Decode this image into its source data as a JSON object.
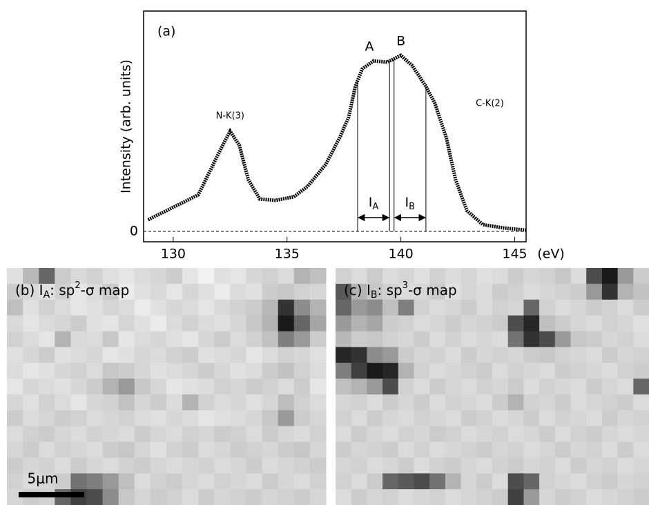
{
  "chart_data": [
    {
      "type": "scatter",
      "panel_label": "(a)",
      "y_label": "Intensity (arb. units)",
      "x_label": "(eV)",
      "x": [
        128.9,
        129.7,
        130.5,
        131.1,
        131.5,
        132.1,
        132.5,
        132.9,
        133.3,
        133.8,
        134.5,
        135.3,
        135.9,
        136.7,
        137.3,
        137.7,
        138.0,
        138.3,
        138.8,
        139.4,
        140.0,
        140.5,
        141.1,
        141.5,
        142.0,
        142.4,
        142.9,
        143.6,
        144.5,
        145.5
      ],
      "values": [
        5.3,
        9.4,
        13.5,
        16.6,
        25,
        37.6,
        45.5,
        39.2,
        23.5,
        14.7,
        14.1,
        15.7,
        20.4,
        30.4,
        42.3,
        51.7,
        65.8,
        73.7,
        77.4,
        76.8,
        79.9,
        75.2,
        65.8,
        58,
        42.3,
        23.5,
        9.4,
        3.1,
        1.6,
        0.6
      ],
      "color": "#000000",
      "xlim": [
        128.7,
        145.5
      ],
      "ylim": [
        -4.7,
        100
      ],
      "xticks": [
        130,
        135,
        140,
        145
      ],
      "yticks": [
        0
      ],
      "annotations": [
        {
          "text": "N-K(3)",
          "x": 132.5
        },
        {
          "text": "A",
          "x": 138.8
        },
        {
          "text": "B",
          "x": 140.0
        },
        {
          "text": "C-K(2)",
          "x": 143.3
        }
      ],
      "windows": [
        {
          "label": "I",
          "sub": "A",
          "range": [
            138.1,
            139.5
          ]
        },
        {
          "label": "I",
          "sub": "B",
          "range": [
            139.7,
            141.1
          ]
        }
      ]
    },
    {
      "type": "heatmap",
      "title": [
        "(b) I",
        "A",
        ": sp",
        "2",
        "-σ map"
      ],
      "scale_bar_label": "5μm",
      "values": [
        [
          88,
          72,
          40,
          80,
          85,
          82,
          88,
          90,
          86,
          84,
          80,
          90,
          95,
          88,
          90,
          84,
          82,
          86,
          70,
          75
        ],
        [
          80,
          85,
          88,
          82,
          90,
          86,
          80,
          92,
          88,
          85,
          90,
          84,
          88,
          92,
          86,
          88,
          80,
          78,
          82,
          84
        ],
        [
          75,
          88,
          82,
          86,
          90,
          88,
          84,
          86,
          92,
          88,
          84,
          86,
          90,
          85,
          82,
          80,
          72,
          20,
          55,
          70
        ],
        [
          85,
          90,
          86,
          84,
          80,
          88,
          90,
          84,
          88,
          92,
          86,
          82,
          86,
          88,
          84,
          78,
          70,
          10,
          40,
          65
        ],
        [
          82,
          86,
          90,
          70,
          85,
          86,
          78,
          90,
          86,
          84,
          88,
          90,
          84,
          80,
          86,
          82,
          76,
          50,
          60,
          80
        ],
        [
          88,
          84,
          80,
          88,
          86,
          84,
          90,
          88,
          84,
          86,
          82,
          80,
          88,
          86,
          84,
          90,
          86,
          82,
          84,
          88
        ],
        [
          86,
          90,
          88,
          84,
          82,
          86,
          78,
          80,
          84,
          88,
          86,
          84,
          80,
          84,
          88,
          86,
          80,
          76,
          82,
          86
        ],
        [
          90,
          84,
          86,
          88,
          84,
          80,
          70,
          60,
          78,
          84,
          90,
          88,
          86,
          82,
          84,
          80,
          82,
          86,
          80,
          90
        ],
        [
          84,
          88,
          82,
          86,
          90,
          84,
          82,
          76,
          84,
          80,
          86,
          70,
          82,
          86,
          84,
          88,
          84,
          74,
          82,
          86
        ],
        [
          80,
          86,
          84,
          80,
          82,
          86,
          84,
          82,
          86,
          88,
          84,
          86,
          90,
          88,
          86,
          84,
          78,
          60,
          80,
          84
        ],
        [
          86,
          82,
          80,
          84,
          86,
          82,
          84,
          86,
          80,
          84,
          86,
          82,
          84,
          80,
          82,
          86,
          80,
          84,
          86,
          82
        ],
        [
          84,
          80,
          86,
          82,
          84,
          86,
          80,
          78,
          84,
          88,
          82,
          80,
          86,
          84,
          80,
          82,
          84,
          80,
          78,
          84
        ],
        [
          80,
          84,
          82,
          86,
          80,
          84,
          86,
          82,
          80,
          84,
          86,
          84,
          82,
          86,
          84,
          80,
          86,
          84,
          82,
          80
        ],
        [
          82,
          86,
          84,
          80,
          45,
          50,
          60,
          75,
          86,
          82,
          80,
          84,
          86,
          82,
          84,
          86,
          80,
          84,
          86,
          82
        ],
        [
          84,
          80,
          82,
          40,
          25,
          30,
          55,
          78,
          84,
          80,
          82,
          86,
          80,
          84,
          82,
          80,
          84,
          82,
          80,
          84
        ]
      ]
    },
    {
      "type": "heatmap",
      "title": [
        "(c) I",
        "B",
        ": sp",
        "3",
        "-σ map"
      ],
      "values": [
        [
          82,
          86,
          80,
          86,
          84,
          88,
          82,
          86,
          84,
          88,
          86,
          80,
          84,
          82,
          78,
          86,
          30,
          10,
          60,
          80
        ],
        [
          35,
          70,
          78,
          82,
          86,
          84,
          80,
          88,
          84,
          86,
          80,
          82,
          86,
          84,
          82,
          80,
          60,
          20,
          70,
          76
        ],
        [
          40,
          60,
          55,
          75,
          50,
          82,
          86,
          84,
          80,
          86,
          82,
          84,
          40,
          82,
          86,
          84,
          80,
          82,
          86,
          80
        ],
        [
          60,
          70,
          65,
          80,
          82,
          86,
          84,
          80,
          84,
          82,
          80,
          30,
          15,
          75,
          80,
          84,
          86,
          82,
          84,
          88
        ],
        [
          72,
          80,
          78,
          82,
          84,
          80,
          86,
          82,
          86,
          84,
          86,
          45,
          20,
          30,
          60,
          78,
          80,
          84,
          82,
          86
        ],
        [
          15,
          20,
          55,
          60,
          80,
          84,
          82,
          86,
          80,
          84,
          82,
          84,
          80,
          78,
          82,
          84,
          86,
          80,
          84,
          82
        ],
        [
          50,
          25,
          10,
          15,
          70,
          82,
          86,
          84,
          82,
          80,
          86,
          82,
          84,
          86,
          80,
          82,
          84,
          86,
          82,
          80
        ],
        [
          75,
          70,
          60,
          30,
          82,
          86,
          80,
          84,
          86,
          82,
          84,
          80,
          86,
          82,
          84,
          86,
          80,
          84,
          86,
          40
        ],
        [
          84,
          82,
          86,
          80,
          84,
          80,
          86,
          82,
          84,
          86,
          80,
          70,
          82,
          84,
          80,
          86,
          84,
          82,
          80,
          86
        ],
        [
          82,
          86,
          80,
          84,
          86,
          82,
          84,
          86,
          80,
          82,
          86,
          84,
          80,
          86,
          82,
          84,
          86,
          80,
          84,
          82
        ],
        [
          86,
          80,
          84,
          86,
          82,
          84,
          80,
          82,
          86,
          84,
          82,
          86,
          84,
          80,
          86,
          82,
          80,
          84,
          86,
          84
        ],
        [
          80,
          84,
          82,
          80,
          86,
          82,
          86,
          84,
          82,
          80,
          84,
          82,
          86,
          84,
          80,
          84,
          82,
          86,
          80,
          86
        ],
        [
          84,
          82,
          86,
          84,
          80,
          86,
          82,
          80,
          84,
          86,
          82,
          80,
          84,
          82,
          86,
          80,
          84,
          82,
          86,
          84
        ],
        [
          82,
          86,
          80,
          40,
          35,
          30,
          45,
          70,
          84,
          80,
          86,
          30,
          40,
          82,
          84,
          86,
          82,
          80,
          84,
          82
        ],
        [
          86,
          80,
          84,
          82,
          86,
          84,
          82,
          86,
          84,
          82,
          80,
          25,
          60,
          84,
          80,
          82,
          86,
          84,
          82,
          80
        ]
      ]
    }
  ]
}
